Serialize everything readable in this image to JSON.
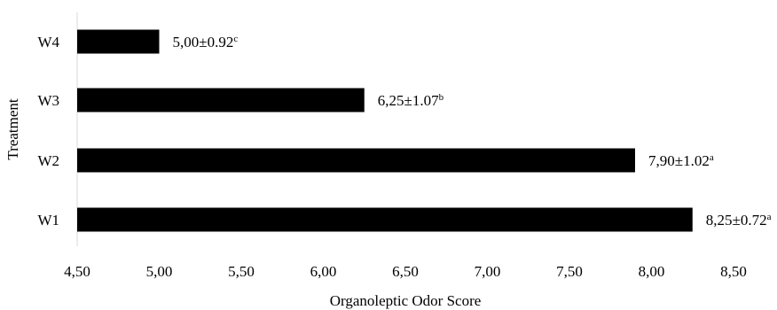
{
  "chart_data": {
    "type": "bar",
    "orientation": "horizontal",
    "xlabel": "Organoleptic Odor Score",
    "ylabel": "Treatment",
    "xlim": [
      4.5,
      8.5
    ],
    "x_ticks": [
      "4,50",
      "5,00",
      "5,50",
      "6,00",
      "6,50",
      "7,00",
      "7,50",
      "8,00",
      "8,50"
    ],
    "x_tick_values": [
      4.5,
      5.0,
      5.5,
      6.0,
      6.5,
      7.0,
      7.5,
      8.0,
      8.5
    ],
    "grid": false,
    "legend": "none",
    "bar_color": "#000000",
    "categories": [
      "W4",
      "W3",
      "W2",
      "W1"
    ],
    "values": [
      5.0,
      6.25,
      7.9,
      8.25
    ],
    "sd": [
      0.92,
      1.07,
      1.02,
      0.72
    ],
    "labels": [
      "5,00±0.92",
      "6,25±1.07",
      "7,90±1.02",
      "8,25±0.72"
    ],
    "significance": [
      "c",
      "b",
      "a",
      "a"
    ]
  }
}
